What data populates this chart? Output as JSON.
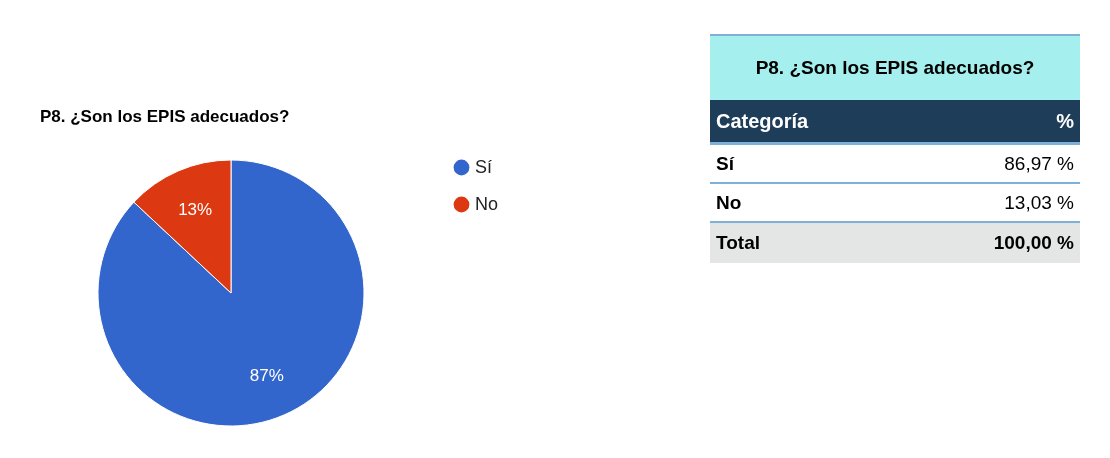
{
  "chart_data": [
    {
      "type": "pie",
      "title": "P8. ¿Son los EPIS adecuados?",
      "categories": [
        "Sí",
        "No"
      ],
      "values": [
        86.97,
        13.03
      ],
      "colors": [
        "#3366cc",
        "#dc3912"
      ],
      "value_labels": [
        "87%",
        "13%"
      ],
      "legend": "right"
    },
    {
      "type": "other",
      "title": "P8. ¿Son los EPIS adecuados?",
      "xlabel": "Categoría",
      "ylabel": "%",
      "categories": [
        "Sí",
        "No",
        "Total"
      ],
      "values": [
        86.97,
        13.03,
        100
      ],
      "value_labels": [
        "86,97 %",
        "13,03 %",
        "100,00 %"
      ]
    }
  ]
}
